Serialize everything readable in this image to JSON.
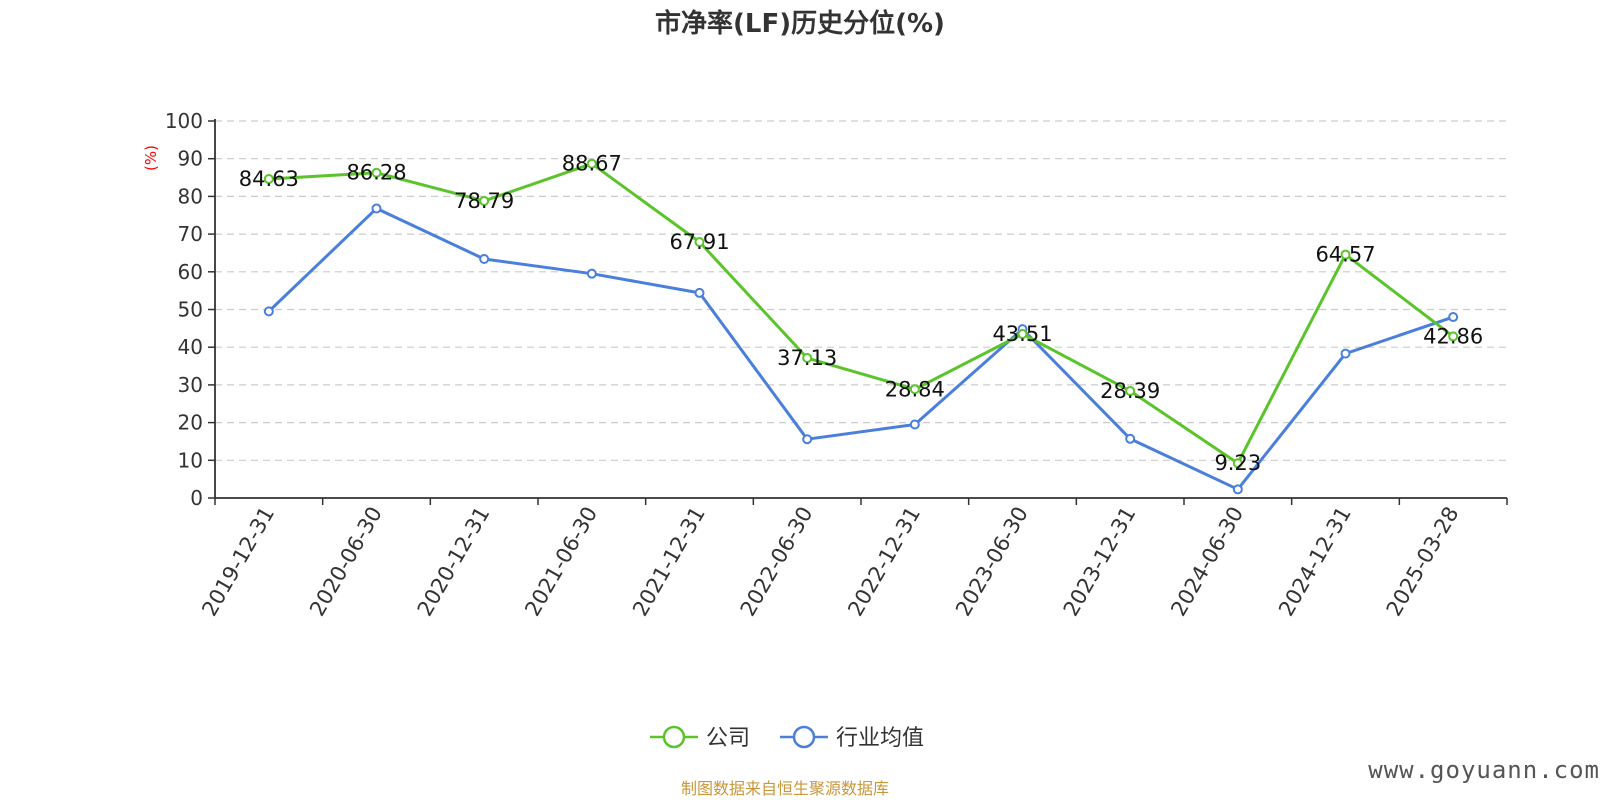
{
  "chart_data": {
    "type": "line",
    "title": "市净率(LF)历史分位(%)",
    "ylabel": "(%)",
    "xlabel": "",
    "ylim": [
      0,
      100
    ],
    "yticks": [
      0,
      10,
      20,
      30,
      40,
      50,
      60,
      70,
      80,
      90,
      100
    ],
    "grid": true,
    "legend_position": "bottom-center",
    "categories": [
      "2019-12-31",
      "2020-06-30",
      "2020-12-31",
      "2021-06-30",
      "2021-12-31",
      "2022-06-30",
      "2022-12-31",
      "2023-06-30",
      "2023-12-31",
      "2024-06-30",
      "2024-12-31",
      "2025-03-28"
    ],
    "series": [
      {
        "name": "公司",
        "color": "#5ac42a",
        "values": [
          84.63,
          86.28,
          78.79,
          88.67,
          67.91,
          37.13,
          28.84,
          43.51,
          28.39,
          9.23,
          64.57,
          42.86
        ],
        "labels": [
          "84.63",
          "86.28",
          "78.79",
          "88.67",
          "67.91",
          "37.13",
          "28.84",
          "43.51",
          "28.39",
          "9.23",
          "64.57",
          "42.86"
        ]
      },
      {
        "name": "行业均值",
        "color": "#4a7fdb",
        "values": [
          49.5,
          76.8,
          63.4,
          59.5,
          54.4,
          15.6,
          19.5,
          44.8,
          15.7,
          2.3,
          38.3,
          48.0
        ]
      }
    ]
  },
  "footer": {
    "source": "制图数据来自恒生聚源数据库",
    "watermark": "www.goyuann.com"
  }
}
